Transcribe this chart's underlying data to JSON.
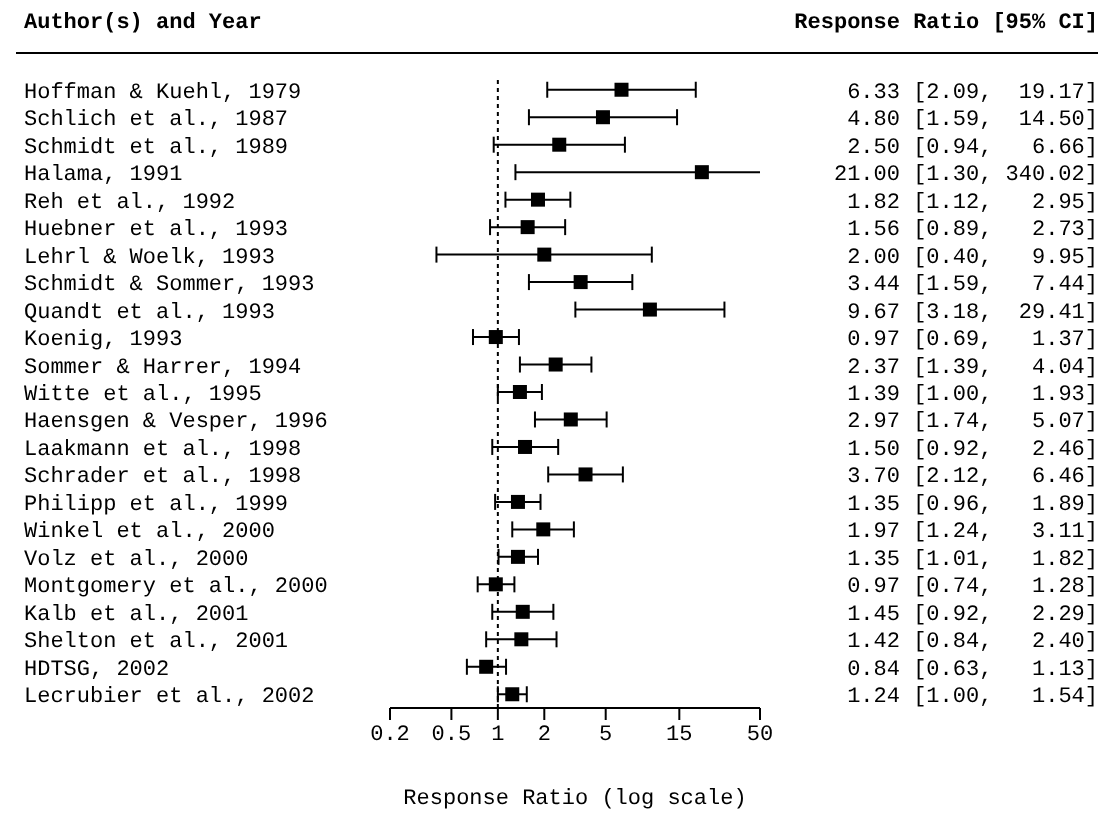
{
  "chart_data": {
    "type": "scatter",
    "orientation": "horizontal",
    "marker": "square",
    "color": "#000000",
    "ylabel": "Author(s) and Year",
    "xlabel": "Response Ratio (log scale)",
    "annotations": [
      "Response Ratio [95% CI]"
    ],
    "categories": [
      "Hoffman & Kuehl, 1979",
      "Schlich et al., 1987",
      "Schmidt et al., 1989",
      "Halama, 1991",
      "Reh et al., 1992",
      "Huebner et al., 1993",
      "Lehrl & Woelk, 1993",
      "Schmidt & Sommer, 1993",
      "Quandt et al., 1993",
      "Koenig, 1993",
      "Sommer & Harrer, 1994",
      "Witte et al., 1995",
      "Haensgen & Vesper, 1996",
      "Laakmann et al., 1998",
      "Schrader et al., 1998",
      "Philipp et al., 1999",
      "Winkel et al., 2000",
      "Volz et al., 2000",
      "Montgomery et al., 2000",
      "Kalb et al., 2001",
      "Shelton et al., 2001",
      "HDTSG, 2002",
      "Lecrubier et al., 2002"
    ],
    "values": [
      6.33,
      4.8,
      2.5,
      21.0,
      1.82,
      1.56,
      2.0,
      3.44,
      9.67,
      0.97,
      2.37,
      1.39,
      2.97,
      1.5,
      3.7,
      1.35,
      1.97,
      1.35,
      0.97,
      1.45,
      1.42,
      0.84,
      1.24
    ],
    "errors": [
      [
        2.09,
        19.17
      ],
      [
        1.59,
        14.5
      ],
      [
        0.94,
        6.66
      ],
      [
        1.3,
        340.02
      ],
      [
        1.12,
        2.95
      ],
      [
        0.89,
        2.73
      ],
      [
        0.4,
        9.95
      ],
      [
        1.59,
        7.44
      ],
      [
        3.18,
        29.41
      ],
      [
        0.69,
        1.37
      ],
      [
        1.39,
        4.04
      ],
      [
        1.0,
        1.93
      ],
      [
        1.74,
        5.07
      ],
      [
        0.92,
        2.46
      ],
      [
        2.12,
        6.46
      ],
      [
        0.96,
        1.89
      ],
      [
        1.24,
        3.11
      ],
      [
        1.01,
        1.82
      ],
      [
        0.74,
        1.28
      ],
      [
        0.92,
        2.29
      ],
      [
        0.84,
        2.4
      ],
      [
        0.63,
        1.13
      ],
      [
        1.0,
        1.54
      ]
    ],
    "value_labels": [
      "6.33 [2.09,  19.17]",
      "4.80 [1.59,  14.50]",
      "2.50 [0.94,   6.66]",
      "21.00 [1.30, 340.02]",
      "1.82 [1.12,   2.95]",
      "1.56 [0.89,   2.73]",
      "2.00 [0.40,   9.95]",
      "3.44 [1.59,   7.44]",
      "9.67 [3.18,  29.41]",
      "0.97 [0.69,   1.37]",
      "2.37 [1.39,   4.04]",
      "1.39 [1.00,   1.93]",
      "2.97 [1.74,   5.07]",
      "1.50 [0.92,   2.46]",
      "3.70 [2.12,   6.46]",
      "1.35 [0.96,   1.89]",
      "1.97 [1.24,   3.11]",
      "1.35 [1.01,   1.82]",
      "0.97 [0.74,   1.28]",
      "1.45 [0.92,   2.29]",
      "1.42 [0.84,   2.40]",
      "0.84 [0.63,   1.13]",
      "1.24 [1.00,   1.54]"
    ],
    "log": "x",
    "xlim": [
      0.2,
      50
    ],
    "xticks": [
      0.2,
      0.5,
      1,
      2,
      5,
      15,
      50
    ],
    "ref_lines": [
      {
        "axis": "x",
        "value": 1,
        "line_style": "dotted"
      }
    ]
  }
}
